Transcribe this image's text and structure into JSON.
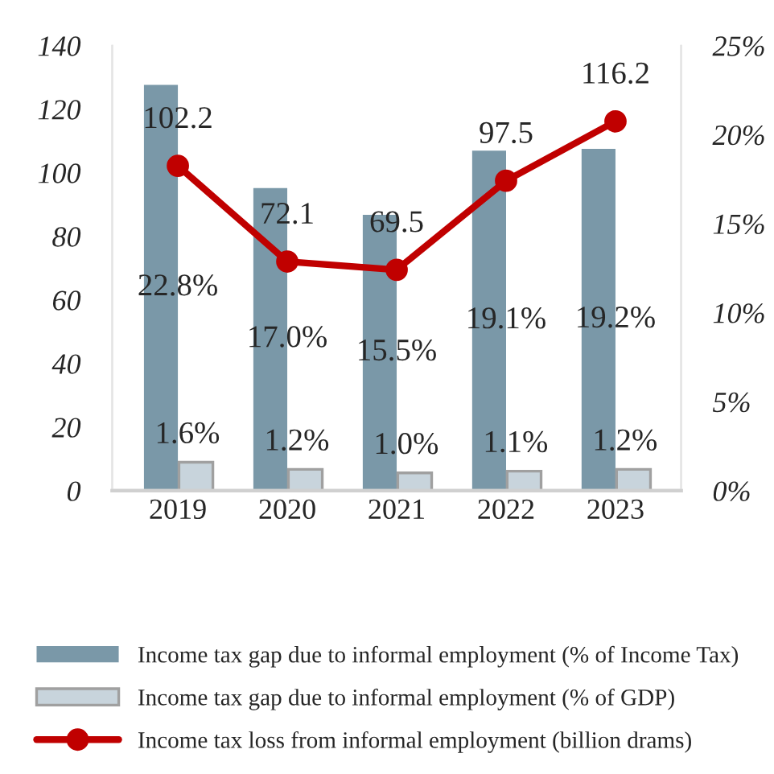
{
  "chart_data": {
    "type": "bar",
    "categories": [
      "2019",
      "2020",
      "2021",
      "2022",
      "2023"
    ],
    "series": [
      {
        "name": "Income tax gap due to informal employment (% of Income Tax)",
        "axis": "y2",
        "color": "#7a98a8",
        "values": [
          22.8,
          17.0,
          15.5,
          19.1,
          19.2
        ],
        "value_labels": [
          "22.8%",
          "17.0%",
          "15.5%",
          "19.1%",
          "19.2%"
        ]
      },
      {
        "name": "Income tax gap due to informal employment (% of GDP)",
        "axis": "y2",
        "color": "#c8d4dc",
        "values": [
          1.6,
          1.2,
          1.0,
          1.1,
          1.2
        ],
        "value_labels": [
          "1.6%",
          "1.2%",
          "1.0%",
          "1.1%",
          "1.2%"
        ]
      },
      {
        "name": "Income tax loss from informal employment (billion drams)",
        "type": "line",
        "axis": "y",
        "color": "#c00000",
        "values": [
          102.2,
          72.1,
          69.5,
          97.5,
          116.2
        ],
        "value_labels": [
          "102.2",
          "72.1",
          "69.5",
          "97.5",
          "116.2"
        ]
      }
    ],
    "ylim": [
      0,
      140
    ],
    "yticks": [
      0,
      20,
      40,
      60,
      80,
      100,
      120,
      140
    ],
    "y2lim": [
      0,
      25
    ],
    "y2ticks": [
      {
        "value": 0,
        "label": "0%"
      },
      {
        "value": 5,
        "label": "5%"
      },
      {
        "value": 10,
        "label": "10%"
      },
      {
        "value": 15,
        "label": "15%"
      },
      {
        "value": 20,
        "label": "20%"
      },
      {
        "value": 25,
        "label": "25%"
      }
    ],
    "marker": "circle",
    "line_style": "solid",
    "grid": false,
    "legend": "bottom"
  }
}
